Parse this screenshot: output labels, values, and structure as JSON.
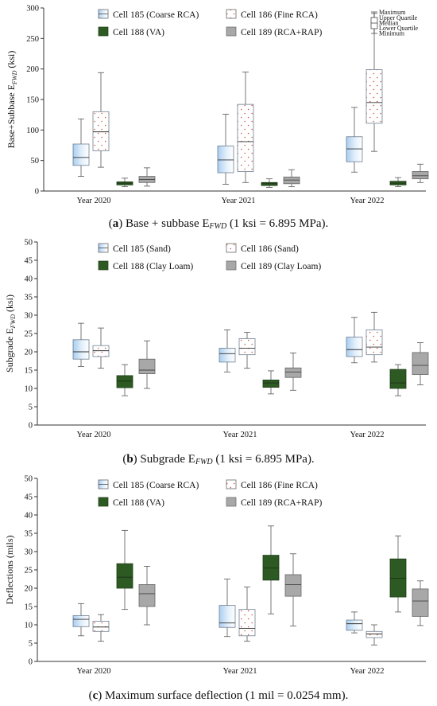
{
  "chart_data": [
    {
      "type": "box",
      "ylabel": "Base+Subbase E",
      "ylabel_sub": "FWD",
      "ylabel_unit": " (ksi)",
      "ylim": [
        0,
        300
      ],
      "yticks": [
        0,
        50,
        100,
        150,
        200,
        250,
        300
      ],
      "categories": [
        "Year 2020",
        "Year 2021",
        "Year 2022"
      ],
      "series": [
        {
          "name": "Cell 185 (Coarse RCA)",
          "style": "gradient",
          "boxes": [
            {
              "min": 24,
              "q1": 42,
              "median": 55,
              "q3": 77,
              "max": 118
            },
            {
              "min": 11,
              "q1": 30,
              "median": 51,
              "q3": 74,
              "max": 126
            },
            {
              "min": 31,
              "q1": 48,
              "median": 69,
              "q3": 89,
              "max": 137
            }
          ]
        },
        {
          "name": "Cell 186 (Fine RCA)",
          "style": "dotted",
          "boxes": [
            {
              "min": 39,
              "q1": 66,
              "median": 97,
              "q3": 130,
              "max": 194
            },
            {
              "min": 14,
              "q1": 32,
              "median": 81,
              "q3": 142,
              "max": 195
            },
            {
              "min": 65,
              "q1": 111,
              "median": 145,
              "q3": 199,
              "max": 291
            }
          ]
        },
        {
          "name": "Cell 188 (VA)",
          "style": "dark",
          "boxes": [
            {
              "min": 7,
              "q1": 10,
              "median": 13,
              "q3": 15,
              "max": 21
            },
            {
              "min": 6,
              "q1": 9,
              "median": 12,
              "q3": 14,
              "max": 20
            },
            {
              "min": 7,
              "q1": 10,
              "median": 13,
              "q3": 16,
              "max": 22
            }
          ]
        },
        {
          "name": "Cell 189 (RCA+RAP)",
          "style": "gray",
          "boxes": [
            {
              "min": 8,
              "q1": 14,
              "median": 19,
              "q3": 24,
              "max": 38
            },
            {
              "min": 7,
              "q1": 12,
              "median": 18,
              "q3": 23,
              "max": 35
            },
            {
              "min": 14,
              "q1": 20,
              "median": 25,
              "q3": 32,
              "max": 44
            }
          ]
        }
      ],
      "legend": {
        "maximum": "Maximum",
        "upper_quartile": "Upper Quartile",
        "median": "Median",
        "lower_quartile": "Lower Quartile",
        "minimum": "Minimum"
      },
      "caption": {
        "prefix": "(",
        "letter": "a",
        "after_letter": ") Base + subbase E",
        "sub": "FWD",
        "rest": " (1 ksi = 6.895 MPa)."
      }
    },
    {
      "type": "box",
      "ylabel": "Subgrade E",
      "ylabel_sub": "FWD",
      "ylabel_unit": " (ksi)",
      "ylim": [
        0,
        50
      ],
      "yticks": [
        0,
        5,
        10,
        15,
        20,
        25,
        30,
        35,
        40,
        45,
        50
      ],
      "categories": [
        "Year 2020",
        "Year 2021",
        "Year 2022"
      ],
      "series": [
        {
          "name": "Cell 185 (Sand)",
          "style": "gradient",
          "boxes": [
            {
              "min": 16,
              "q1": 18,
              "median": 20,
              "q3": 23.3,
              "max": 27.8
            },
            {
              "min": 14.5,
              "q1": 17.2,
              "median": 19.5,
              "q3": 21,
              "max": 26
            },
            {
              "min": 17,
              "q1": 18.7,
              "median": 20.6,
              "q3": 24,
              "max": 29.4
            }
          ]
        },
        {
          "name": "Cell 186 (Sand)",
          "style": "dotted",
          "boxes": [
            {
              "min": 15.5,
              "q1": 18.7,
              "median": 20.3,
              "q3": 21.7,
              "max": 26.5
            },
            {
              "min": 15.5,
              "q1": 19.2,
              "median": 21,
              "q3": 23.6,
              "max": 25.3
            },
            {
              "min": 17.2,
              "q1": 19.2,
              "median": 21.3,
              "q3": 26,
              "max": 30.8
            }
          ]
        },
        {
          "name": "Cell 188 (Clay Loam)",
          "style": "dark",
          "boxes": [
            {
              "min": 8,
              "q1": 10.2,
              "median": 12,
              "q3": 13.5,
              "max": 16.5
            },
            {
              "min": 8.5,
              "q1": 10.3,
              "median": 11.5,
              "q3": 12.3,
              "max": 14.8
            },
            {
              "min": 8,
              "q1": 10,
              "median": 11.5,
              "q3": 15.2,
              "max": 16.5
            }
          ]
        },
        {
          "name": "Cell 189 (Clay Loam)",
          "style": "gray",
          "boxes": [
            {
              "min": 10,
              "q1": 14,
              "median": 15,
              "q3": 18,
              "max": 23
            },
            {
              "min": 9.5,
              "q1": 13,
              "median": 14.5,
              "q3": 15.6,
              "max": 19.7
            },
            {
              "min": 11,
              "q1": 13.8,
              "median": 16.3,
              "q3": 19.8,
              "max": 22.5
            }
          ]
        }
      ],
      "caption": {
        "prefix": "(",
        "letter": "b",
        "after_letter": ") Subgrade E",
        "sub": "FWD",
        "rest": " (1 ksi = 6.895 MPa)."
      }
    },
    {
      "type": "box",
      "ylabel": "Deflections (mils)",
      "ylim": [
        0,
        50
      ],
      "yticks": [
        0,
        5,
        10,
        15,
        20,
        25,
        30,
        35,
        40,
        45,
        50
      ],
      "categories": [
        "Year 2020",
        "Year 2021",
        "Year 2022"
      ],
      "series": [
        {
          "name": "Cell 185 (Coarse RCA)",
          "style": "gradient",
          "boxes": [
            {
              "min": 7,
              "q1": 9.5,
              "median": 11.5,
              "q3": 12.5,
              "max": 15.8
            },
            {
              "min": 6.8,
              "q1": 9.3,
              "median": 10.5,
              "q3": 15.3,
              "max": 22.5
            },
            {
              "min": 7.8,
              "q1": 8.5,
              "median": 10.3,
              "q3": 11.3,
              "max": 13.5
            }
          ]
        },
        {
          "name": "Cell 186 (Fine RCA)",
          "style": "dotted",
          "boxes": [
            {
              "min": 5.5,
              "q1": 8.2,
              "median": 9.4,
              "q3": 11,
              "max": 12.8
            },
            {
              "min": 5.5,
              "q1": 7,
              "median": 9,
              "q3": 14.2,
              "max": 20.3
            },
            {
              "min": 4.5,
              "q1": 6.5,
              "median": 7.5,
              "q3": 8.2,
              "max": 10
            }
          ]
        },
        {
          "name": "Cell 188 (VA)",
          "style": "dark",
          "boxes": [
            {
              "min": 14.2,
              "q1": 20,
              "median": 23,
              "q3": 26.7,
              "max": 35.8
            },
            {
              "min": 13,
              "q1": 22.2,
              "median": 25.5,
              "q3": 29,
              "max": 37
            },
            {
              "min": 13.5,
              "q1": 17.6,
              "median": 22.7,
              "q3": 28,
              "max": 34.3
            }
          ]
        },
        {
          "name": "Cell 189 (RCA+RAP)",
          "style": "gray",
          "boxes": [
            {
              "min": 10,
              "q1": 15,
              "median": 18.5,
              "q3": 21,
              "max": 26
            },
            {
              "min": 9.7,
              "q1": 17.8,
              "median": 21,
              "q3": 23.7,
              "max": 29.4
            },
            {
              "min": 9.8,
              "q1": 12.3,
              "median": 16.5,
              "q3": 19.8,
              "max": 22
            }
          ]
        }
      ],
      "caption": {
        "prefix": "(",
        "letter": "c",
        "after_letter": ") Maximum surface deflection (1 mil = 0.0254 mm)."
      }
    }
  ]
}
